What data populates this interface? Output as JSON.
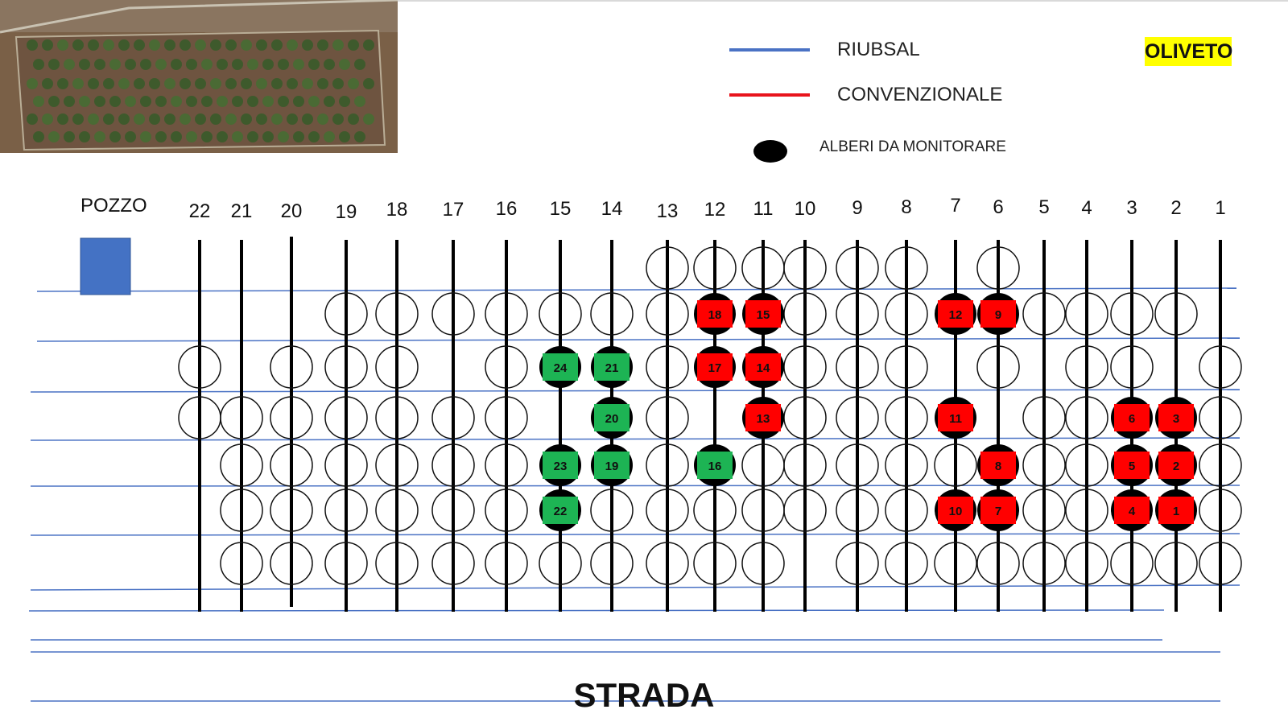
{
  "legend": {
    "riubsal": {
      "label": "RIUBSAL",
      "color": "#4a72c4"
    },
    "convenzionale": {
      "label": "CONVENZIONALE",
      "color": "#e8141c"
    },
    "alberi": {
      "label": "ALBERI DA MONITORARE",
      "color": "#000000"
    }
  },
  "title_badge": {
    "label": "OLIVETO",
    "color": "#ffff00"
  },
  "pozzo": {
    "label": "POZZO",
    "color": "#4472c4"
  },
  "strada": {
    "label": "STRADA"
  },
  "rows": [
    "22",
    "21",
    "20",
    "19",
    "18",
    "17",
    "16",
    "15",
    "14",
    "13",
    "12",
    "11",
    "10",
    "9",
    "8",
    "7",
    "6",
    "5",
    "4",
    "3",
    "2",
    "1"
  ],
  "groups": {
    "riubsal_color": "#1db454",
    "convenzionale_color": "#ff0000"
  },
  "trees": {
    "riubsal": [
      {
        "num": "24",
        "row": "15",
        "line": 2
      },
      {
        "num": "23",
        "row": "15",
        "line": 4
      },
      {
        "num": "22",
        "row": "15",
        "line": 5
      },
      {
        "num": "21",
        "row": "14",
        "line": 2
      },
      {
        "num": "20",
        "row": "14",
        "line": 3
      },
      {
        "num": "19",
        "row": "14",
        "line": 4
      },
      {
        "num": "16",
        "row": "12",
        "line": 4
      }
    ],
    "convenzionale": [
      {
        "num": "18",
        "row": "12",
        "line": 1
      },
      {
        "num": "17",
        "row": "12",
        "line": 2
      },
      {
        "num": "15",
        "row": "11",
        "line": 1
      },
      {
        "num": "14",
        "row": "11",
        "line": 2
      },
      {
        "num": "13",
        "row": "11",
        "line": 3
      },
      {
        "num": "12",
        "row": "7",
        "line": 1
      },
      {
        "num": "11",
        "row": "7",
        "line": 3
      },
      {
        "num": "10",
        "row": "7",
        "line": 5
      },
      {
        "num": "9",
        "row": "6",
        "line": 1
      },
      {
        "num": "8",
        "row": "6",
        "line": 4
      },
      {
        "num": "7",
        "row": "6",
        "line": 5
      },
      {
        "num": "6",
        "row": "3",
        "line": 3
      },
      {
        "num": "5",
        "row": "3",
        "line": 4
      },
      {
        "num": "4",
        "row": "3",
        "line": 5
      },
      {
        "num": "3",
        "row": "2",
        "line": 3
      },
      {
        "num": "2",
        "row": "2",
        "line": 4
      },
      {
        "num": "1",
        "row": "2",
        "line": 5
      }
    ]
  }
}
